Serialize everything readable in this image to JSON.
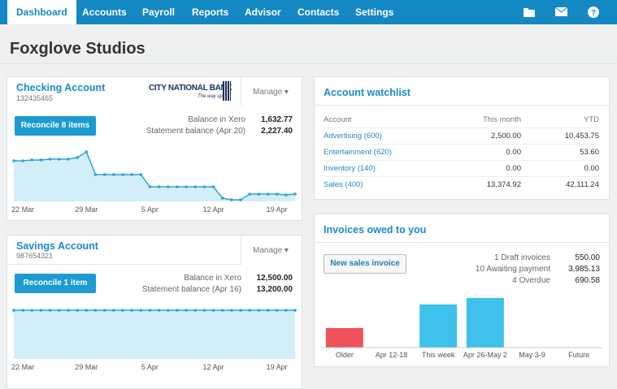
{
  "nav": {
    "items": [
      "Dashboard",
      "Accounts",
      "Payroll",
      "Reports",
      "Advisor",
      "Contacts",
      "Settings"
    ],
    "active": 0
  },
  "header": {
    "title": "Foxglove Studios"
  },
  "checking": {
    "title": "Checking Account",
    "number": "132435465",
    "bank": "CITY NATIONAL BANK",
    "bank_tagline": "The way up.",
    "manage": "Manage",
    "button": "Reconcile 8 items",
    "rows": [
      [
        "Balance in Xero",
        "1,632.77"
      ],
      [
        "Statement balance (Apr 20)",
        "2,227.40"
      ]
    ],
    "chart": {
      "type": "area",
      "color": "#2aa6d8",
      "fill": "#d3eef9",
      "categories": [
        null,
        "22 Mar",
        null,
        null,
        null,
        null,
        null,
        null,
        "29 Mar",
        null,
        null,
        null,
        null,
        null,
        null,
        "5 Apr",
        null,
        null,
        null,
        null,
        null,
        null,
        "12 Apr",
        null,
        null,
        null,
        null,
        null,
        null,
        "19 Apr",
        null,
        null
      ],
      "values": [
        50,
        50,
        51,
        51,
        52,
        52,
        52,
        54,
        61,
        33,
        33,
        33,
        33,
        33,
        33,
        18,
        18,
        18,
        18,
        18,
        18,
        18,
        18,
        4,
        2,
        2,
        9,
        9,
        9,
        9,
        8,
        9
      ],
      "ylim": [
        0,
        65
      ]
    }
  },
  "savings": {
    "title": "Savings Account",
    "number": "987654321",
    "manage": "Manage",
    "button": "Reconcile 1 item",
    "rows": [
      [
        "Balance in Xero",
        "12,500.00"
      ],
      [
        "Statement balance (Apr 16)",
        "13,200.00"
      ]
    ],
    "chart": {
      "type": "area",
      "color": "#2aa6d8",
      "fill": "#d3eef9",
      "categories": [
        null,
        "22 Mar",
        null,
        null,
        null,
        null,
        null,
        null,
        "29 Mar",
        null,
        null,
        null,
        null,
        null,
        null,
        "5 Apr",
        null,
        null,
        null,
        null,
        null,
        null,
        "12 Apr",
        null,
        null,
        null,
        null,
        null,
        null,
        "19 Apr",
        null,
        null
      ],
      "values": [
        60,
        60,
        60,
        60,
        60,
        60,
        60,
        60,
        60,
        60,
        60,
        60,
        60,
        60,
        60,
        60,
        60,
        60,
        60,
        60,
        60,
        60,
        60,
        60,
        60,
        60,
        60,
        60,
        60,
        60,
        60,
        60
      ],
      "ylim": [
        0,
        65
      ]
    }
  },
  "watchlist": {
    "title": "Account watchlist",
    "columns": [
      "Account",
      "This month",
      "YTD"
    ],
    "rows": [
      [
        "Advertising (600)",
        "2,500.00",
        "10,453.75"
      ],
      [
        "Entertainment (620)",
        "0.00",
        "53.60"
      ],
      [
        "Inventory (140)",
        "0.00",
        "0.00"
      ],
      [
        "Sales (400)",
        "13,374.92",
        "42,111.24"
      ]
    ]
  },
  "invoices": {
    "title": "Invoices owed to you",
    "button": "New sales invoice",
    "rows": [
      [
        "1 Draft invoices",
        "550.00"
      ],
      [
        "10 Awaiting payment",
        "3,985.13"
      ],
      [
        "4 Overdue",
        "690.58"
      ]
    ],
    "chart": {
      "type": "bar",
      "categories": [
        "Older",
        "Apr 12-18",
        "This week",
        "Apr 26-May 2",
        "May 3-9",
        "Future"
      ],
      "values": [
        690.58,
        0,
        1530,
        1760,
        0,
        0
      ],
      "colors": [
        "#f0525c",
        "#3ec1ea",
        "#3ec1ea",
        "#3ec1ea",
        "#3ec1ea",
        "#3ec1ea"
      ],
      "ylim": [
        0,
        2100
      ]
    }
  }
}
